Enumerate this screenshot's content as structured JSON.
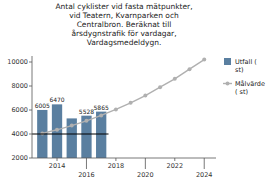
{
  "chart_data": {
    "type": "bar",
    "title": "Antal cyklister vid fasta mätpunkter,\nvid Teatern, Kvarnparken och\nCentralbron. Beräknat till\nårsdygnstrafik för vardagar,\nVardagsmedeldygn.",
    "x": [
      2013,
      2014,
      2015,
      2016,
      2017,
      2018,
      2019,
      2020,
      2021,
      2022,
      2023,
      2024
    ],
    "series": [
      {
        "name": "Utfall (\nst)",
        "type": "bar",
        "color": "#5a7fa0",
        "values": [
          6005,
          6470,
          5300,
          5528,
          5865,
          null,
          null,
          null,
          null,
          null,
          null,
          null
        ],
        "value_labels": [
          "6005",
          "6470",
          null,
          "5528",
          "5865",
          null,
          null,
          null,
          null,
          null,
          null,
          null
        ]
      },
      {
        "name": "Målvärde\n( st)",
        "type": "line",
        "color": "#b0b0b0",
        "marker": "circle",
        "values": [
          4050,
          4350,
          4700,
          5100,
          5550,
          6050,
          6600,
          7200,
          7900,
          8600,
          9400,
          10200
        ]
      }
    ],
    "reference_lines": [
      {
        "y": 4000,
        "x": [
          2012.3,
          2017.5
        ],
        "color": "#000000"
      }
    ],
    "ylim": [
      2000,
      10500
    ],
    "yticks": [
      2000,
      4000,
      6000,
      8000,
      10000
    ],
    "xlim": [
      2012.3,
      2024.8
    ],
    "xticks": [
      2014,
      2016,
      2018,
      2020,
      2022,
      2024
    ],
    "data_labels": true,
    "grid": false,
    "legend": "upper right"
  }
}
